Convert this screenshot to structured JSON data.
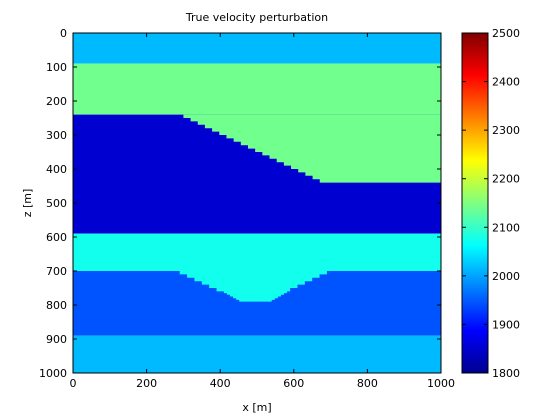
{
  "chart_data": {
    "type": "heatmap",
    "title": "True velocity perturbation",
    "xlabel": "x [m]",
    "ylabel": "z [m]",
    "xlim": [
      0,
      1000
    ],
    "ylim": [
      1000,
      0
    ],
    "x_ticks": [
      0,
      200,
      400,
      600,
      800,
      1000
    ],
    "y_ticks": [
      0,
      100,
      200,
      300,
      400,
      500,
      600,
      700,
      800,
      900,
      1000
    ],
    "colormap": "jet",
    "colorbar": {
      "range": [
        1800,
        2500
      ],
      "ticks": [
        1800,
        1900,
        2000,
        2100,
        2200,
        2300,
        2400,
        2500
      ]
    },
    "layers": [
      {
        "value": 2015,
        "z_top": 0,
        "z_bottom": 90
      },
      {
        "value": 2140,
        "z_top": 90,
        "z_bottom": 240
      },
      {
        "value": 1855,
        "z_top": 240,
        "z_bottom": 590,
        "note": "top boundary dips from (300,240) to (690,440) over a second layer region"
      },
      {
        "value": 2140,
        "z_top": 240,
        "z_bottom": 440,
        "shape": "wedge",
        "boundary": [
          [
            300,
            240
          ],
          [
            690,
            440
          ]
        ]
      },
      {
        "value": 2075,
        "z_top": 590,
        "z_bottom": 700
      },
      {
        "value": 1945,
        "z_top": 700,
        "z_bottom": 890
      },
      {
        "value": 2075,
        "z_top": 700,
        "z_bottom": 790,
        "shape": "bowl",
        "boundary": [
          [
            290,
            700
          ],
          [
            410,
            760
          ],
          [
            460,
            790
          ],
          [
            540,
            790
          ],
          [
            590,
            760
          ],
          [
            710,
            700
          ]
        ]
      },
      {
        "value": 2015,
        "z_top": 890,
        "z_bottom": 1000
      }
    ]
  }
}
